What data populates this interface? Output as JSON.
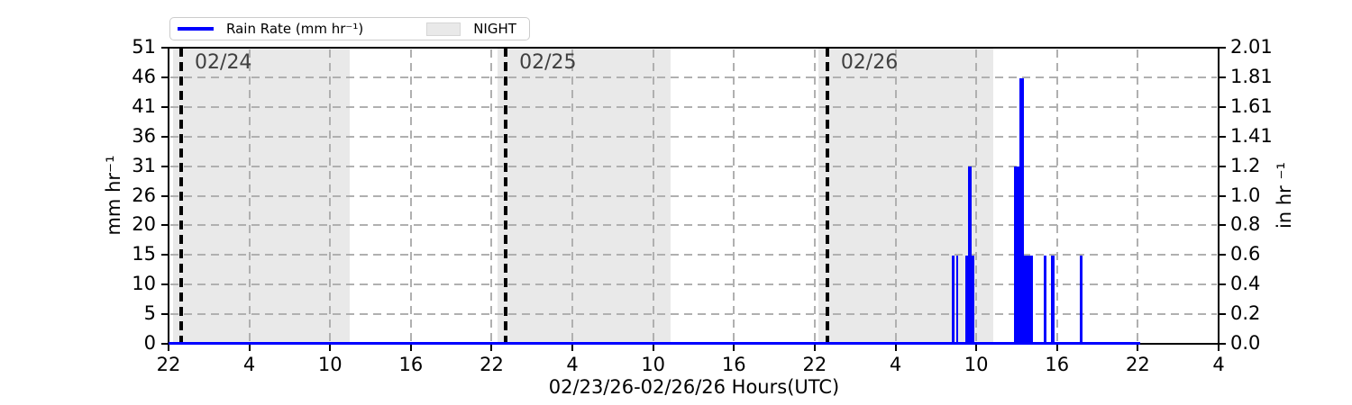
{
  "chart_data": {
    "type": "bar",
    "title": "",
    "xlabel": "02/23/26-02/26/26  Hours(UTC)",
    "ylabel_left": "mm hr⁻¹",
    "ylabel_right": "in hr ⁻¹",
    "x_hours_total": 78,
    "x_ticks": [
      {
        "t": 0,
        "label": "22"
      },
      {
        "t": 6,
        "label": "4"
      },
      {
        "t": 12,
        "label": "10"
      },
      {
        "t": 18,
        "label": "16"
      },
      {
        "t": 24,
        "label": "22"
      },
      {
        "t": 30,
        "label": "4"
      },
      {
        "t": 36,
        "label": "10"
      },
      {
        "t": 42,
        "label": "16"
      },
      {
        "t": 48,
        "label": "22"
      },
      {
        "t": 54,
        "label": "4"
      },
      {
        "t": 60,
        "label": "10"
      },
      {
        "t": 66,
        "label": "16"
      },
      {
        "t": 72,
        "label": "22"
      },
      {
        "t": 78,
        "label": "4"
      }
    ],
    "ylim_mm": [
      0,
      51
    ],
    "y_ticks": [
      {
        "mm": 0,
        "left": "0",
        "right": "0.0"
      },
      {
        "mm": 5.1,
        "left": "5",
        "right": "0.2"
      },
      {
        "mm": 10.2,
        "left": "10",
        "right": "0.4"
      },
      {
        "mm": 15.3,
        "left": "15",
        "right": "0.6"
      },
      {
        "mm": 20.4,
        "left": "20",
        "right": "0.8"
      },
      {
        "mm": 25.5,
        "left": "26",
        "right": "1.0"
      },
      {
        "mm": 30.6,
        "left": "31",
        "right": "1.2"
      },
      {
        "mm": 35.7,
        "left": "36",
        "right": "1.41"
      },
      {
        "mm": 40.8,
        "left": "41",
        "right": "1.61"
      },
      {
        "mm": 45.9,
        "left": "46",
        "right": "1.81"
      },
      {
        "mm": 51,
        "left": "51",
        "right": "2.01"
      }
    ],
    "grid": true,
    "legend_position": "top-left",
    "day_lines": [
      {
        "t": 0.94,
        "label": "02/24"
      },
      {
        "t": 25.05,
        "label": "02/25"
      },
      {
        "t": 48.93,
        "label": "02/26"
      }
    ],
    "night_regions_hours": [
      [
        0.35,
        13.46
      ],
      [
        24.45,
        37.29
      ],
      [
        48.27,
        61.28
      ]
    ],
    "rain_bars_hours_mm": [
      [
        58.21,
        58.38,
        15.24
      ],
      [
        58.51,
        58.68,
        15.24
      ],
      [
        59.18,
        59.38,
        15.24
      ],
      [
        59.38,
        59.65,
        30.48
      ],
      [
        59.65,
        59.85,
        15.24
      ],
      [
        62.83,
        63.23,
        30.48
      ],
      [
        63.23,
        63.53,
        45.72
      ],
      [
        63.53,
        64.23,
        15.24
      ],
      [
        65.0,
        65.24,
        15.24
      ],
      [
        65.57,
        65.81,
        15.24
      ],
      [
        67.71,
        67.91,
        15.24
      ]
    ],
    "baseline_hours": [
      0,
      72.2
    ],
    "legend": {
      "items": [
        {
          "swatch": "line",
          "color": "#0000ff",
          "label": "Rain Rate (mm hr⁻¹)"
        },
        {
          "swatch": "patch",
          "color": "#e9e9e9",
          "label": "NIGHT"
        }
      ]
    },
    "colors": {
      "rain": "#0000ff",
      "night_fill": "#e9e9e9",
      "grid": "#b0b0b0",
      "day_line": "#000000",
      "date_label": "#404040"
    }
  }
}
